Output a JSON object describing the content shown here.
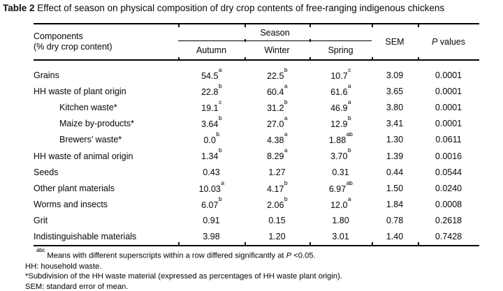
{
  "caption": {
    "label": "Table 2",
    "text": " Effect of season on physical composition of dry crop contents of free-ranging indigenous chickens"
  },
  "table": {
    "header": {
      "components_line1": "Components",
      "components_line2": "(% dry crop content)",
      "season_group": "Season",
      "season_columns": [
        "Autumn",
        "Winter",
        "Spring"
      ],
      "sem": "SEM",
      "p_italic": "P",
      "p_rest": " values"
    },
    "rows": [
      {
        "label": "Grains",
        "indent": false,
        "values": [
          {
            "v": "54.5",
            "sup": "a"
          },
          {
            "v": "22.5",
            "sup": "b"
          },
          {
            "v": "10.7",
            "sup": "c"
          }
        ],
        "sem": "3.09",
        "p": "0.0001"
      },
      {
        "label": "HH waste of plant origin",
        "indent": false,
        "values": [
          {
            "v": "22.8",
            "sup": "b"
          },
          {
            "v": "60.4",
            "sup": "a"
          },
          {
            "v": "61.6",
            "sup": "a"
          }
        ],
        "sem": "3.65",
        "p": "0.0001"
      },
      {
        "label": "Kitchen waste*",
        "indent": true,
        "values": [
          {
            "v": "19.1",
            "sup": "c"
          },
          {
            "v": "31.2",
            "sup": "b"
          },
          {
            "v": "46.9",
            "sup": "a"
          }
        ],
        "sem": "3.80",
        "p": "0.0001"
      },
      {
        "label": "Maize by-products*",
        "indent": true,
        "values": [
          {
            "v": "3.64",
            "sup": "b"
          },
          {
            "v": "27.0",
            "sup": "a"
          },
          {
            "v": "12.9",
            "sup": "b"
          }
        ],
        "sem": "3.41",
        "p": "0.0001"
      },
      {
        "label": "Brewers’ waste*",
        "indent": true,
        "values": [
          {
            "v": "0.0",
            "sup": "b"
          },
          {
            "v": "4.38",
            "sup": "a"
          },
          {
            "v": "1.88",
            "sup": "ab"
          }
        ],
        "sem": "1.30",
        "p": "0.0611"
      },
      {
        "label": "HH waste of animal origin",
        "indent": false,
        "values": [
          {
            "v": "1.34",
            "sup": "b"
          },
          {
            "v": "8.29",
            "sup": "a"
          },
          {
            "v": "3.70",
            "sup": "b"
          }
        ],
        "sem": "1.39",
        "p": "0.0016"
      },
      {
        "label": "Seeds",
        "indent": false,
        "values": [
          {
            "v": "0.43",
            "sup": ""
          },
          {
            "v": "1.27",
            "sup": ""
          },
          {
            "v": "0.31",
            "sup": ""
          }
        ],
        "sem": "0.44",
        "p": "0.0544"
      },
      {
        "label": "Other plant materials",
        "indent": false,
        "values": [
          {
            "v": "10.03",
            "sup": "a"
          },
          {
            "v": "4.17",
            "sup": "b"
          },
          {
            "v": "6.97",
            "sup": "ab"
          }
        ],
        "sem": "1.50",
        "p": "0.0240"
      },
      {
        "label": "Worms and insects",
        "indent": false,
        "values": [
          {
            "v": "6.07",
            "sup": "b"
          },
          {
            "v": "2.06",
            "sup": "b"
          },
          {
            "v": "12.0",
            "sup": "a"
          }
        ],
        "sem": "1.84",
        "p": "0.0008"
      },
      {
        "label": "Grit",
        "indent": false,
        "values": [
          {
            "v": "0.91",
            "sup": ""
          },
          {
            "v": "0.15",
            "sup": ""
          },
          {
            "v": "1.80",
            "sup": ""
          }
        ],
        "sem": "0.78",
        "p": "0.2618"
      },
      {
        "label": "Indistinguishable materials",
        "indent": false,
        "values": [
          {
            "v": "3.98",
            "sup": ""
          },
          {
            "v": "1.20",
            "sup": ""
          },
          {
            "v": "3.01",
            "sup": ""
          }
        ],
        "sem": "1.40",
        "p": "0.7428"
      }
    ]
  },
  "footnotes": {
    "line1": {
      "sup": "abc",
      "pre": " Means with different superscripts within a row differed significantly at ",
      "p_italic": "P",
      "post": " <0.05."
    },
    "line2": "HH: household waste.",
    "line3": "*Subdivision of the HH waste material (expressed as percentages of HH waste plant origin).",
    "line4": "SEM: standard error of mean."
  },
  "colors": {
    "background": "#ffffff",
    "text": "#1b1b1b",
    "rule": "#000000"
  }
}
